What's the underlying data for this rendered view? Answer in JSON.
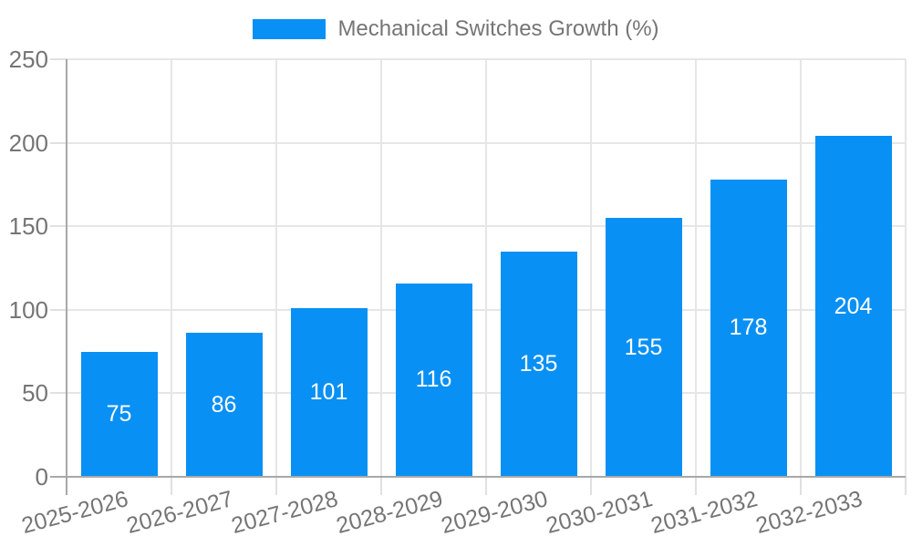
{
  "chart_data": {
    "type": "bar",
    "title": "Mechanical Switches Growth (%)",
    "categories": [
      "2025-2026",
      "2026-2027",
      "2027-2028",
      "2028-2029",
      "2029-2030",
      "2030-2031",
      "2031-2032",
      "2032-2033"
    ],
    "values": [
      75,
      86,
      101,
      116,
      135,
      155,
      178,
      204
    ],
    "xlabel": "",
    "ylabel": "",
    "ylim": [
      0,
      250
    ],
    "yticks": [
      0,
      50,
      100,
      150,
      200,
      250
    ],
    "grid": "both",
    "legend_position": "top-center",
    "bar_labels_inside": true,
    "colors": {
      "bar": "#0990f4",
      "bar_label_text": "#ffffff",
      "axis_text": "#757575",
      "gridline": "#e6e6e6",
      "axis_line": "#a8a8a8",
      "background": "#ffffff"
    }
  },
  "legend": {
    "items": [
      {
        "label": "Mechanical Switches Growth (%)",
        "swatch_color": "#0990f4"
      }
    ]
  }
}
